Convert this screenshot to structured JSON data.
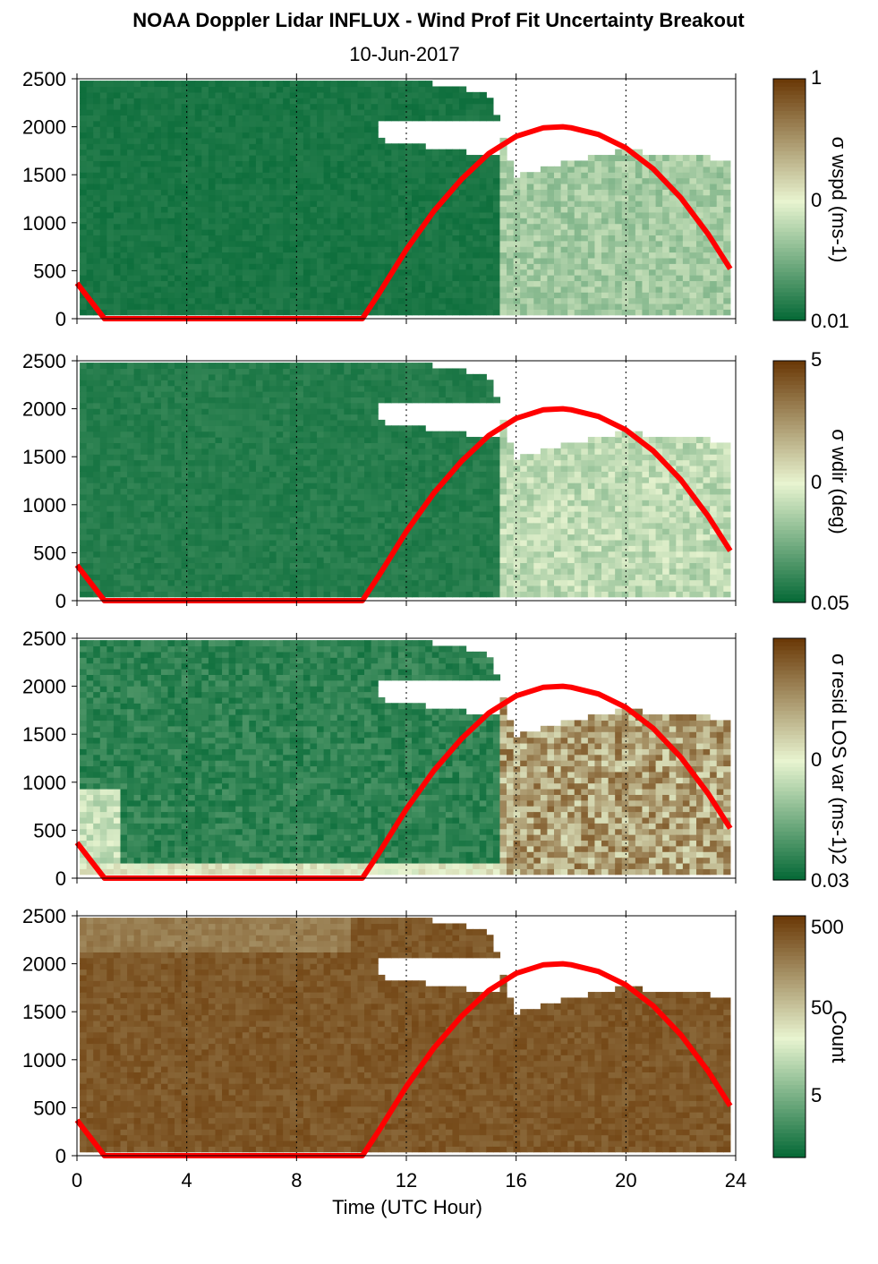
{
  "chart_data": {
    "type": "heatmap",
    "title": "NOAA Doppler Lidar INFLUX - Wind Prof Fit Uncertainty Breakout",
    "subtitle": "10-Jun-2017",
    "xlabel": "Time (UTC Hour)",
    "xlim": [
      0,
      24
    ],
    "x_ticks": [
      "0",
      "4",
      "8",
      "12",
      "16",
      "20",
      "24"
    ],
    "y_ticks": [
      "0",
      "500",
      "1000",
      "1500",
      "2000",
      "2500"
    ],
    "ylim": [
      0,
      2500
    ],
    "grid": "dotted vertical lines at 4-hour intervals",
    "colors": {
      "low": "#006633",
      "high": "#6b3a08",
      "sun_curve": "#ff0000"
    },
    "panels": [
      {
        "name": "sigma-wspd",
        "colorbar_label": "σ wspd (ms-1)",
        "colorbar_ticks": [
          "1",
          "0",
          "0.01"
        ],
        "colorbar_scale": "log"
      },
      {
        "name": "sigma-wdir",
        "colorbar_label": "σ wdir (deg)",
        "colorbar_ticks": [
          "5",
          "0",
          "0.05"
        ],
        "colorbar_scale": "log"
      },
      {
        "name": "sigma-resid-los-var",
        "colorbar_label": "σ resid LOS var (ms-1)2",
        "colorbar_ticks": [
          "0",
          "0.03"
        ],
        "colorbar_scale": "log"
      },
      {
        "name": "count",
        "colorbar_label": "Count",
        "colorbar_ticks": [
          "500",
          "50",
          "5"
        ],
        "colorbar_scale": "log"
      }
    ],
    "cloud_top_profile": {
      "x": [
        0,
        2,
        4,
        6,
        8,
        10,
        11,
        12,
        13,
        14,
        15,
        16,
        17,
        18,
        19,
        20,
        21,
        22,
        23,
        23.8
      ],
      "y": [
        2500,
        2500,
        2500,
        2500,
        2500,
        2500,
        2500,
        2500,
        2450,
        2400,
        2350,
        1480,
        1560,
        1640,
        1700,
        1760,
        1720,
        1700,
        1680,
        1640
      ]
    },
    "sun_elevation_curve": {
      "x": [
        0,
        1,
        10.4,
        11,
        12,
        13,
        14,
        15,
        16,
        17,
        17.7,
        18,
        19,
        20,
        21,
        22,
        23,
        23.8
      ],
      "y": [
        370,
        0,
        0,
        260,
        720,
        1120,
        1450,
        1720,
        1900,
        1990,
        2000,
        1990,
        1920,
        1780,
        1560,
        1260,
        880,
        520
      ]
    }
  }
}
